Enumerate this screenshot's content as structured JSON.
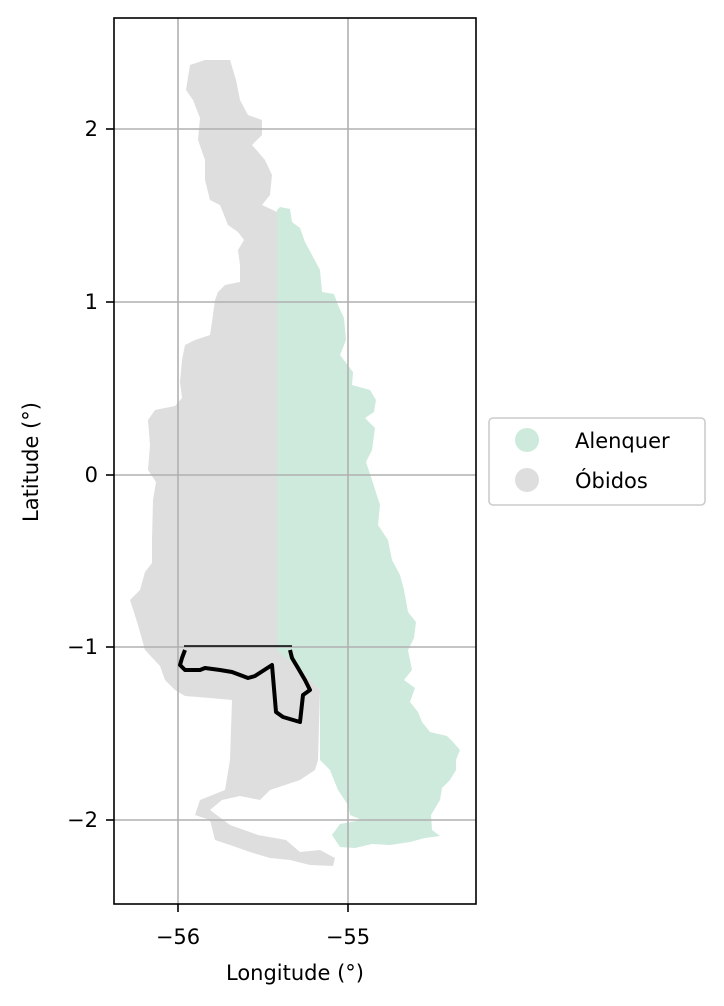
{
  "chart_data": {
    "type": "map",
    "xlabel": "Longitude (°)",
    "ylabel": "Latitude (°)",
    "xlim": [
      -56.37,
      -54.27
    ],
    "ylim": [
      -2.5,
      2.65
    ],
    "xticks": [
      -56,
      -55
    ],
    "yticks": [
      -2,
      -1,
      0,
      1,
      2
    ],
    "grid": true,
    "legend_position": "right",
    "legend": [
      {
        "label": "Alenquer",
        "color": "#cdeadd"
      },
      {
        "label": "Óbidos",
        "color": "#dedede"
      }
    ],
    "regions": [
      {
        "name": "Óbidos",
        "color": "#dedede",
        "lon_range": [
          -56.27,
          -55.4
        ],
        "lat_range": [
          -2.24,
          2.4
        ]
      },
      {
        "name": "Alenquer",
        "color": "#cdeadd",
        "lon_range": [
          -55.41,
          -54.5
        ],
        "lat_range": [
          -2.18,
          1.55
        ]
      }
    ],
    "highlighted_outline": {
      "color": "#000000",
      "lon_range": [
        -55.97,
        -55.22
      ],
      "lat_range": [
        -1.45,
        -0.99
      ]
    }
  }
}
